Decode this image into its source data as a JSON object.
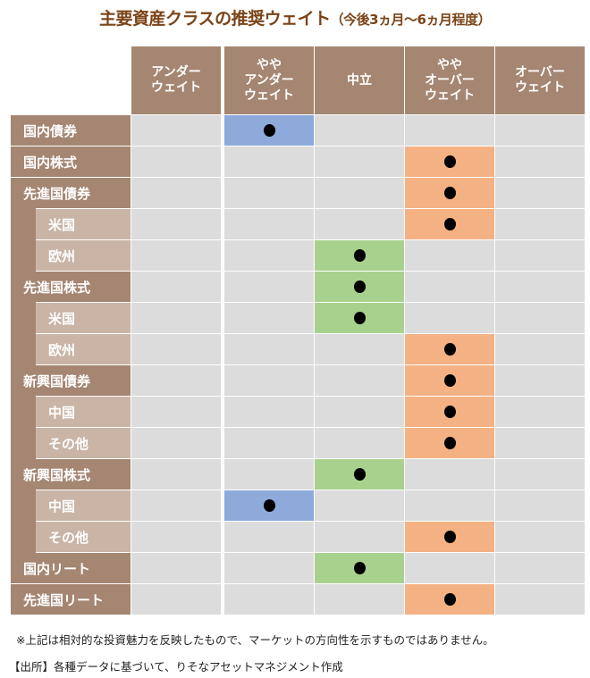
{
  "title": {
    "main": "主要資産クラスの推奨ウェイト",
    "sub": "（今後3ヵ月～6ヵ月程度）"
  },
  "columns": [
    "アンダー\nウェイト",
    "やや\nアンダー\nウェイト",
    "中立",
    "やや\nオーバー\nウェイト",
    "オーバー\nウェイト"
  ],
  "colors": {
    "header": "#a48672",
    "sub_label": "#c9b4a6",
    "empty": "#dcdcdc",
    "underweight": "#8eaadb",
    "neutral": "#a9d18e",
    "overweight": "#f4b183"
  },
  "rows": [
    {
      "label": "国内債券",
      "level": 0,
      "position": 1
    },
    {
      "label": "国内株式",
      "level": 0,
      "position": 3
    },
    {
      "label": "先進国債券",
      "level": 0,
      "position": 3
    },
    {
      "label": "米国",
      "level": 1,
      "position": 3
    },
    {
      "label": "欧州",
      "level": 1,
      "position": 2
    },
    {
      "label": "先進国株式",
      "level": 0,
      "position": 2
    },
    {
      "label": "米国",
      "level": 1,
      "position": 2
    },
    {
      "label": "欧州",
      "level": 1,
      "position": 3
    },
    {
      "label": "新興国債券",
      "level": 0,
      "position": 3
    },
    {
      "label": "中国",
      "level": 1,
      "position": 3
    },
    {
      "label": "その他",
      "level": 1,
      "position": 3
    },
    {
      "label": "新興国株式",
      "level": 0,
      "position": 2
    },
    {
      "label": "中国",
      "level": 1,
      "position": 1
    },
    {
      "label": "その他",
      "level": 1,
      "position": 3
    },
    {
      "label": "国内リート",
      "level": 0,
      "position": 2
    },
    {
      "label": "先進国リート",
      "level": 0,
      "position": 3
    }
  ],
  "notes": {
    "disclaimer": "※上記は相対的な投資魅力を反映したもので、マーケットの方向性を示すものではありません。",
    "source": "【出所】各種データに基づいて、りそなアセットマネジメント作成"
  }
}
